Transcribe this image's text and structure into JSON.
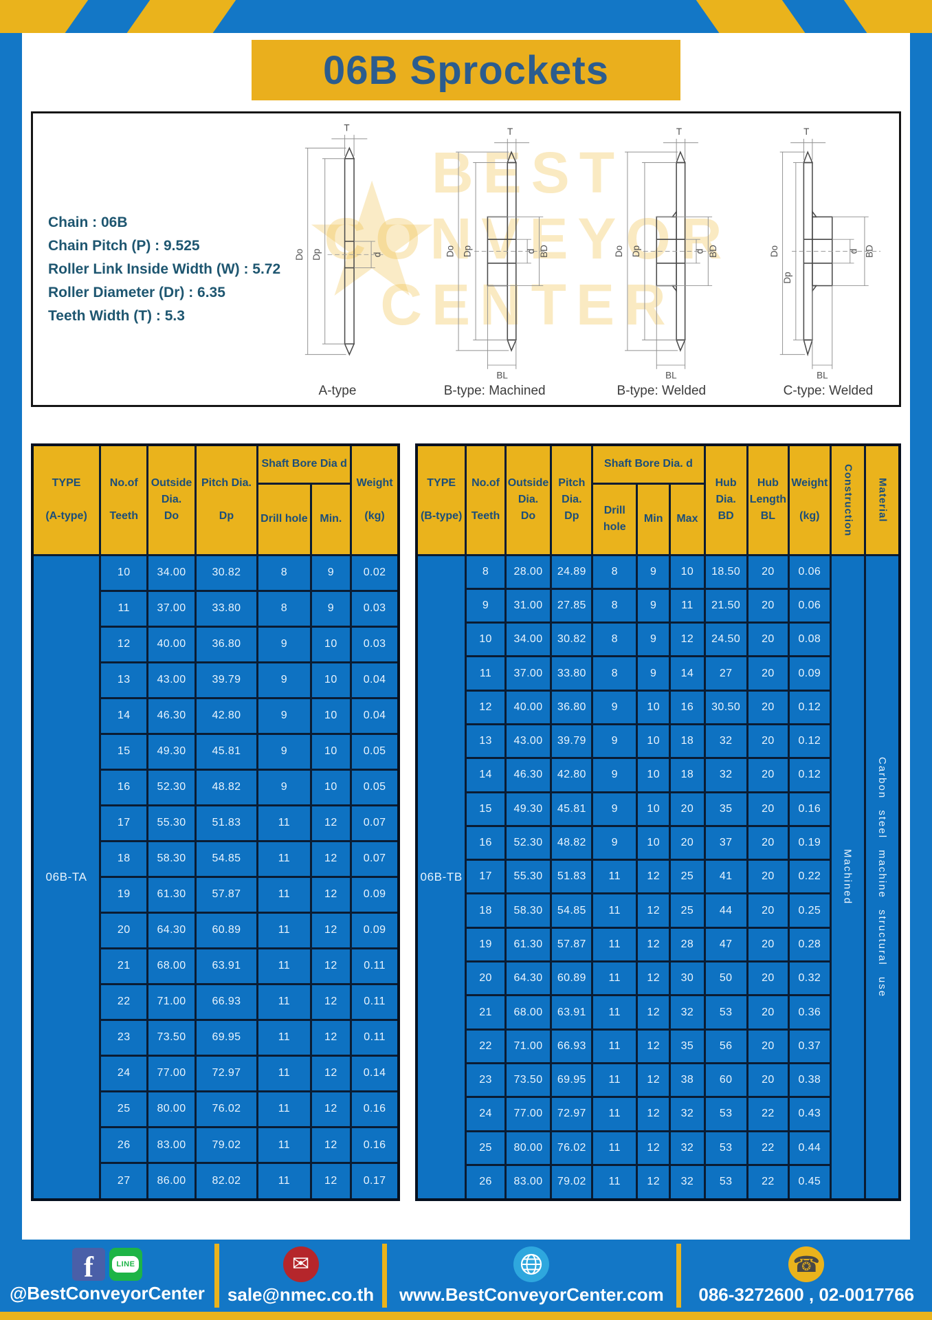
{
  "page": {
    "title": "06B Sprockets"
  },
  "specs": {
    "lines": [
      "Chain  : 06B",
      "Chain Pitch (P)  :  9.525",
      "Roller Link Inside Width (W)  :  5.72",
      "Roller Diameter (Dr)  : 6.35",
      "Teeth Width (T)  :  5.3"
    ]
  },
  "diagram": {
    "figure_labels": [
      "A-type",
      "B-type: Machined",
      "B-type: Welded",
      "C-type: Welded"
    ],
    "dims": {
      "T": "T",
      "Do": "Do",
      "Dp": "Dp",
      "d": "d",
      "BD": "BD",
      "BL": "BL"
    },
    "watermark": [
      "BEST",
      "CONVEYOR",
      "CENTER"
    ],
    "watermark_star": "★"
  },
  "table_a": {
    "headers": {
      "type": "TYPE\n\n(A-type)",
      "teeth": "No.of\n\nTeeth",
      "outside": "Outside\nDia.\nDo",
      "pitch": "Pitch Dia.\n\nDp",
      "shaft_bore": "Shaft Bore Dia d",
      "drill": "Drill hole",
      "min": "Min.",
      "weight": "Weight\n\n(kg)"
    },
    "lead_cells": [
      {
        "text": "06B-TA",
        "name": "type-a-value",
        "kind": "type"
      }
    ],
    "rows": [
      [
        "10",
        "34.00",
        "30.82",
        "8",
        "9",
        "0.02"
      ],
      [
        "11",
        "37.00",
        "33.80",
        "8",
        "9",
        "0.03"
      ],
      [
        "12",
        "40.00",
        "36.80",
        "9",
        "10",
        "0.03"
      ],
      [
        "13",
        "43.00",
        "39.79",
        "9",
        "10",
        "0.04"
      ],
      [
        "14",
        "46.30",
        "42.80",
        "9",
        "10",
        "0.04"
      ],
      [
        "15",
        "49.30",
        "45.81",
        "9",
        "10",
        "0.05"
      ],
      [
        "16",
        "52.30",
        "48.82",
        "9",
        "10",
        "0.05"
      ],
      [
        "17",
        "55.30",
        "51.83",
        "11",
        "12",
        "0.07"
      ],
      [
        "18",
        "58.30",
        "54.85",
        "11",
        "12",
        "0.07"
      ],
      [
        "19",
        "61.30",
        "57.87",
        "11",
        "12",
        "0.09"
      ],
      [
        "20",
        "64.30",
        "60.89",
        "11",
        "12",
        "0.09"
      ],
      [
        "21",
        "68.00",
        "63.91",
        "11",
        "12",
        "0.11"
      ],
      [
        "22",
        "71.00",
        "66.93",
        "11",
        "12",
        "0.11"
      ],
      [
        "23",
        "73.50",
        "69.95",
        "11",
        "12",
        "0.11"
      ],
      [
        "24",
        "77.00",
        "72.97",
        "11",
        "12",
        "0.14"
      ],
      [
        "25",
        "80.00",
        "76.02",
        "11",
        "12",
        "0.16"
      ],
      [
        "26",
        "83.00",
        "79.02",
        "11",
        "12",
        "0.16"
      ],
      [
        "27",
        "86.00",
        "82.02",
        "11",
        "12",
        "0.17"
      ]
    ]
  },
  "table_b": {
    "headers": {
      "type": "TYPE\n\n(B-type)",
      "teeth": "No.of\n\nTeeth",
      "outside": "Outside\nDia.\nDo",
      "pitch": "Pitch\nDia.\nDp",
      "shaft_bore": "Shaft Bore Dia.  d",
      "drill": "Drill hole",
      "min": "Min",
      "max": "Max",
      "hub_dia": "Hub\nDia.\nBD",
      "hub_len": "Hub\nLength\nBL",
      "weight": "Weight\n\n(kg)",
      "construction": "Construction",
      "material": "Material"
    },
    "lead_cells": [
      {
        "text": "06B-TB",
        "name": "type-b-value",
        "kind": "type"
      }
    ],
    "tail_cells": [
      {
        "text": "Machined",
        "name": "construction-value",
        "kind": "vertical"
      },
      {
        "text": "Carbon steel machine structural use",
        "name": "material-value",
        "kind": "vertical"
      }
    ],
    "rows": [
      [
        "8",
        "28.00",
        "24.89",
        "8",
        "9",
        "10",
        "18.50",
        "20",
        "0.06"
      ],
      [
        "9",
        "31.00",
        "27.85",
        "8",
        "9",
        "11",
        "21.50",
        "20",
        "0.06"
      ],
      [
        "10",
        "34.00",
        "30.82",
        "8",
        "9",
        "12",
        "24.50",
        "20",
        "0.08"
      ],
      [
        "11",
        "37.00",
        "33.80",
        "8",
        "9",
        "14",
        "27",
        "20",
        "0.09"
      ],
      [
        "12",
        "40.00",
        "36.80",
        "9",
        "10",
        "16",
        "30.50",
        "20",
        "0.12"
      ],
      [
        "13",
        "43.00",
        "39.79",
        "9",
        "10",
        "18",
        "32",
        "20",
        "0.12"
      ],
      [
        "14",
        "46.30",
        "42.80",
        "9",
        "10",
        "18",
        "32",
        "20",
        "0.12"
      ],
      [
        "15",
        "49.30",
        "45.81",
        "9",
        "10",
        "20",
        "35",
        "20",
        "0.16"
      ],
      [
        "16",
        "52.30",
        "48.82",
        "9",
        "10",
        "20",
        "37",
        "20",
        "0.19"
      ],
      [
        "17",
        "55.30",
        "51.83",
        "11",
        "12",
        "25",
        "41",
        "20",
        "0.22"
      ],
      [
        "18",
        "58.30",
        "54.85",
        "11",
        "12",
        "25",
        "44",
        "20",
        "0.25"
      ],
      [
        "19",
        "61.30",
        "57.87",
        "11",
        "12",
        "28",
        "47",
        "20",
        "0.28"
      ],
      [
        "20",
        "64.30",
        "60.89",
        "11",
        "12",
        "30",
        "50",
        "20",
        "0.32"
      ],
      [
        "21",
        "68.00",
        "63.91",
        "11",
        "12",
        "32",
        "53",
        "20",
        "0.36"
      ],
      [
        "22",
        "71.00",
        "66.93",
        "11",
        "12",
        "35",
        "56",
        "20",
        "0.37"
      ],
      [
        "23",
        "73.50",
        "69.95",
        "11",
        "12",
        "38",
        "60",
        "20",
        "0.38"
      ],
      [
        "24",
        "77.00",
        "72.97",
        "11",
        "12",
        "32",
        "53",
        "22",
        "0.43"
      ],
      [
        "25",
        "80.00",
        "76.02",
        "11",
        "12",
        "32",
        "53",
        "22",
        "0.44"
      ],
      [
        "26",
        "83.00",
        "79.02",
        "11",
        "12",
        "32",
        "53",
        "22",
        "0.45"
      ]
    ]
  },
  "footer": {
    "social_text": "@BestConveyorCenter",
    "facebook_letter": "f",
    "line_label": "LINE",
    "email": "sale@nmec.co.th",
    "website": "www.BestConveyorCenter.com",
    "phone": "086-3272600 , 02-0017766",
    "mail_glyph": "✉",
    "phone_glyph": "☎"
  },
  "colors": {
    "frame_blue": "#1377c6",
    "cell_blue": "#0e72c2",
    "accent_yellow": "#eab31c",
    "header_text_blue": "#1b4e7a",
    "title_text_blue": "#2b5c8e"
  }
}
